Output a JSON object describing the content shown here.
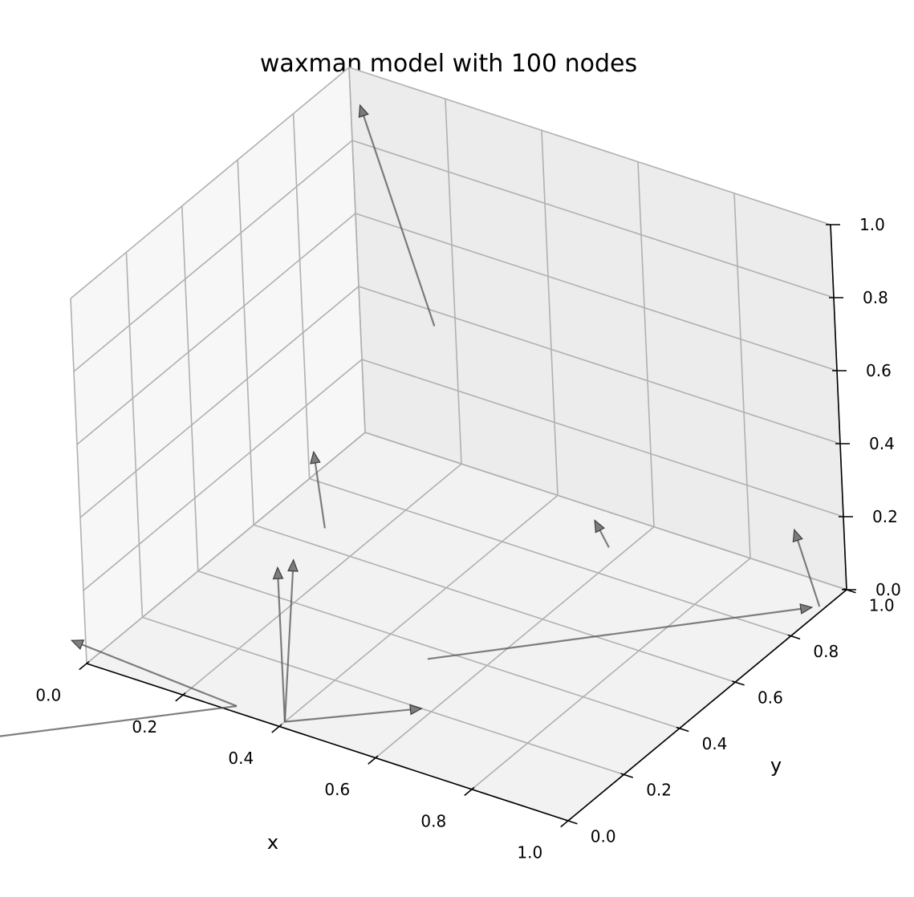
{
  "chart_data": {
    "type": "3d-directed-graph",
    "title": "waxman model with 100 nodes",
    "xlabel": "x",
    "ylabel": "y",
    "zlabel": "",
    "xlim": [
      0,
      1
    ],
    "ylim": [
      0,
      1
    ],
    "zlim": [
      0,
      1
    ],
    "grid": true,
    "x_ticks": [
      "0.0",
      "0.2",
      "0.4",
      "0.6",
      "0.8",
      "1.0"
    ],
    "y_ticks": [
      "0.0",
      "0.2",
      "0.4",
      "0.6",
      "0.8",
      "1.0"
    ],
    "z_ticks": [
      "0.0",
      "0.2",
      "0.4",
      "0.6",
      "0.8",
      "1.0"
    ],
    "edge_color": "#555555",
    "edges": [
      {
        "from": [
          0.32,
          0.73,
          0.6
        ],
        "to": [
          0.05,
          0.95,
          0.95
        ]
      },
      {
        "from": [
          0.18,
          0.55,
          0.1
        ],
        "to": [
          0.06,
          0.72,
          0.15
        ]
      },
      {
        "from": [
          0.57,
          0.89,
          0.0
        ],
        "to": [
          0.5,
          0.96,
          0.0
        ]
      },
      {
        "from": [
          0.5,
          0.36,
          0.0
        ],
        "to": [
          0.98,
          0.91,
          0.0
        ]
      },
      {
        "from": [
          0.99,
          0.92,
          0.0
        ],
        "to": [
          0.95,
          0.91,
          0.2
        ]
      },
      {
        "from": [
          0.4,
          0.02,
          0.0
        ],
        "to": [
          0.18,
          0.38,
          0.1
        ]
      },
      {
        "from": [
          0.4,
          0.02,
          0.0
        ],
        "to": [
          0.19,
          0.42,
          0.1
        ]
      },
      {
        "from": [
          0.4,
          0.02,
          0.0
        ],
        "to": [
          0.58,
          0.2,
          0.0
        ]
      },
      {
        "from": [
          0.3,
          0.02,
          0.0
        ],
        "to": [
          -0.2,
          0.28,
          -0.2
        ]
      },
      {
        "from": [
          0.3,
          0.02,
          0.0
        ],
        "to": [
          -0.3,
          0.1,
          -0.4
        ]
      }
    ]
  }
}
